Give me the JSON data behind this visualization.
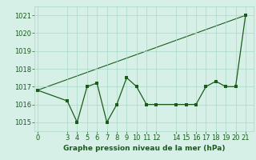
{
  "title": "Graphe pression niveau de la mer (hPa)",
  "x_values": [
    0,
    3,
    4,
    5,
    6,
    7,
    8,
    9,
    10,
    11,
    12,
    14,
    15,
    16,
    17,
    18,
    19,
    20,
    21
  ],
  "y_values": [
    1016.8,
    1016.2,
    1015.0,
    1017.0,
    1017.2,
    1015.0,
    1016.0,
    1017.5,
    1017.0,
    1016.0,
    1016.0,
    1016.0,
    1016.0,
    1016.0,
    1017.0,
    1017.3,
    1017.0,
    1017.0,
    1021.0
  ],
  "trend_x": [
    0,
    21
  ],
  "trend_y": [
    1016.8,
    1021.0
  ],
  "ylim": [
    1014.5,
    1021.5
  ],
  "xlim": [
    -0.3,
    21.8
  ],
  "yticks": [
    1015,
    1016,
    1017,
    1018,
    1019,
    1020,
    1021
  ],
  "xticks": [
    0,
    3,
    4,
    5,
    6,
    7,
    8,
    9,
    10,
    11,
    12,
    14,
    15,
    16,
    17,
    18,
    19,
    20,
    21
  ],
  "line_color": "#1a5c1a",
  "trend_color": "#1a5c1a",
  "bg_color": "#d6f0e8",
  "grid_color": "#a8d8c8",
  "marker_size": 2.5,
  "label_fontsize": 6,
  "title_fontsize": 6.5
}
